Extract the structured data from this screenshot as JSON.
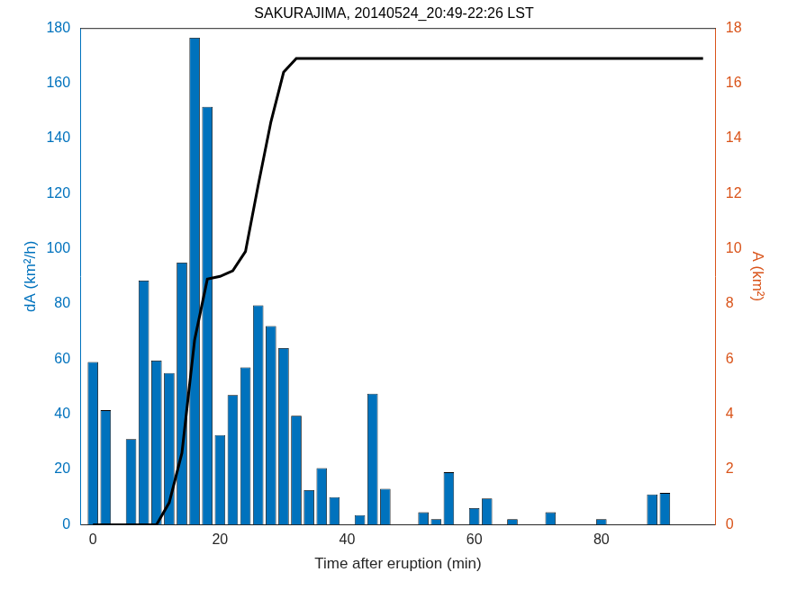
{
  "chart_data": {
    "type": "bar",
    "title": "SAKURAJIMA, 20140524_20:49-22:26 LST",
    "x_label": "Time after eruption (min)",
    "y_label": "dA (km²/h)",
    "y2_label": "A (km²)",
    "x": [
      0,
      2,
      4,
      6,
      8,
      10,
      12,
      14,
      16,
      18,
      20,
      22,
      24,
      26,
      28,
      30,
      32,
      34,
      36,
      38,
      40,
      42,
      44,
      46,
      48,
      50,
      52,
      54,
      56,
      58,
      60,
      62,
      64,
      66,
      68,
      70,
      72,
      74,
      76,
      78,
      80,
      82,
      84,
      86,
      88,
      90,
      92,
      94,
      96
    ],
    "series": [
      {
        "name": "dA",
        "type": "bar",
        "color": "#0072bd",
        "axis": "y",
        "values": [
          59,
          41.5,
          0,
          31,
          88.5,
          59.5,
          55,
          95,
          176.5,
          151.5,
          32.5,
          47,
          57,
          79.5,
          72,
          64,
          39.5,
          12.5,
          20.5,
          10,
          0,
          3.5,
          47.5,
          13,
          0,
          0,
          4.5,
          2,
          19,
          0,
          6,
          9.5,
          0,
          2,
          0,
          0,
          4.5,
          0,
          0,
          0,
          2,
          0,
          0,
          0,
          11,
          11.5,
          0,
          0,
          0
        ]
      },
      {
        "name": "A",
        "type": "line",
        "color": "#000000",
        "axis": "y2",
        "line_style": "solid",
        "marker": "none",
        "values": [
          0,
          0,
          0,
          0,
          0,
          0,
          0.8,
          2.6,
          6.7,
          8.9,
          9.0,
          9.2,
          9.9,
          12.3,
          14.6,
          16.4,
          16.9,
          16.9,
          16.9,
          16.9,
          16.9,
          16.9,
          16.9,
          16.9,
          16.9,
          16.9,
          16.9,
          16.9,
          16.9,
          16.9,
          16.9,
          16.9,
          16.9,
          16.9,
          16.9,
          16.9,
          16.9,
          16.9,
          16.9,
          16.9,
          16.9,
          16.9,
          16.9,
          16.9,
          16.9,
          16.9,
          16.9,
          16.9,
          16.9
        ]
      }
    ],
    "xlim": [
      -2,
      98
    ],
    "xticks": [
      0,
      20,
      40,
      60,
      80
    ],
    "ylim": [
      0,
      180
    ],
    "yticks": [
      0,
      20,
      40,
      60,
      80,
      100,
      120,
      140,
      160,
      180
    ],
    "y2lim": [
      0,
      18
    ],
    "y2ticks": [
      0,
      2,
      4,
      6,
      8,
      10,
      12,
      14,
      16,
      18
    ],
    "grid": false
  }
}
